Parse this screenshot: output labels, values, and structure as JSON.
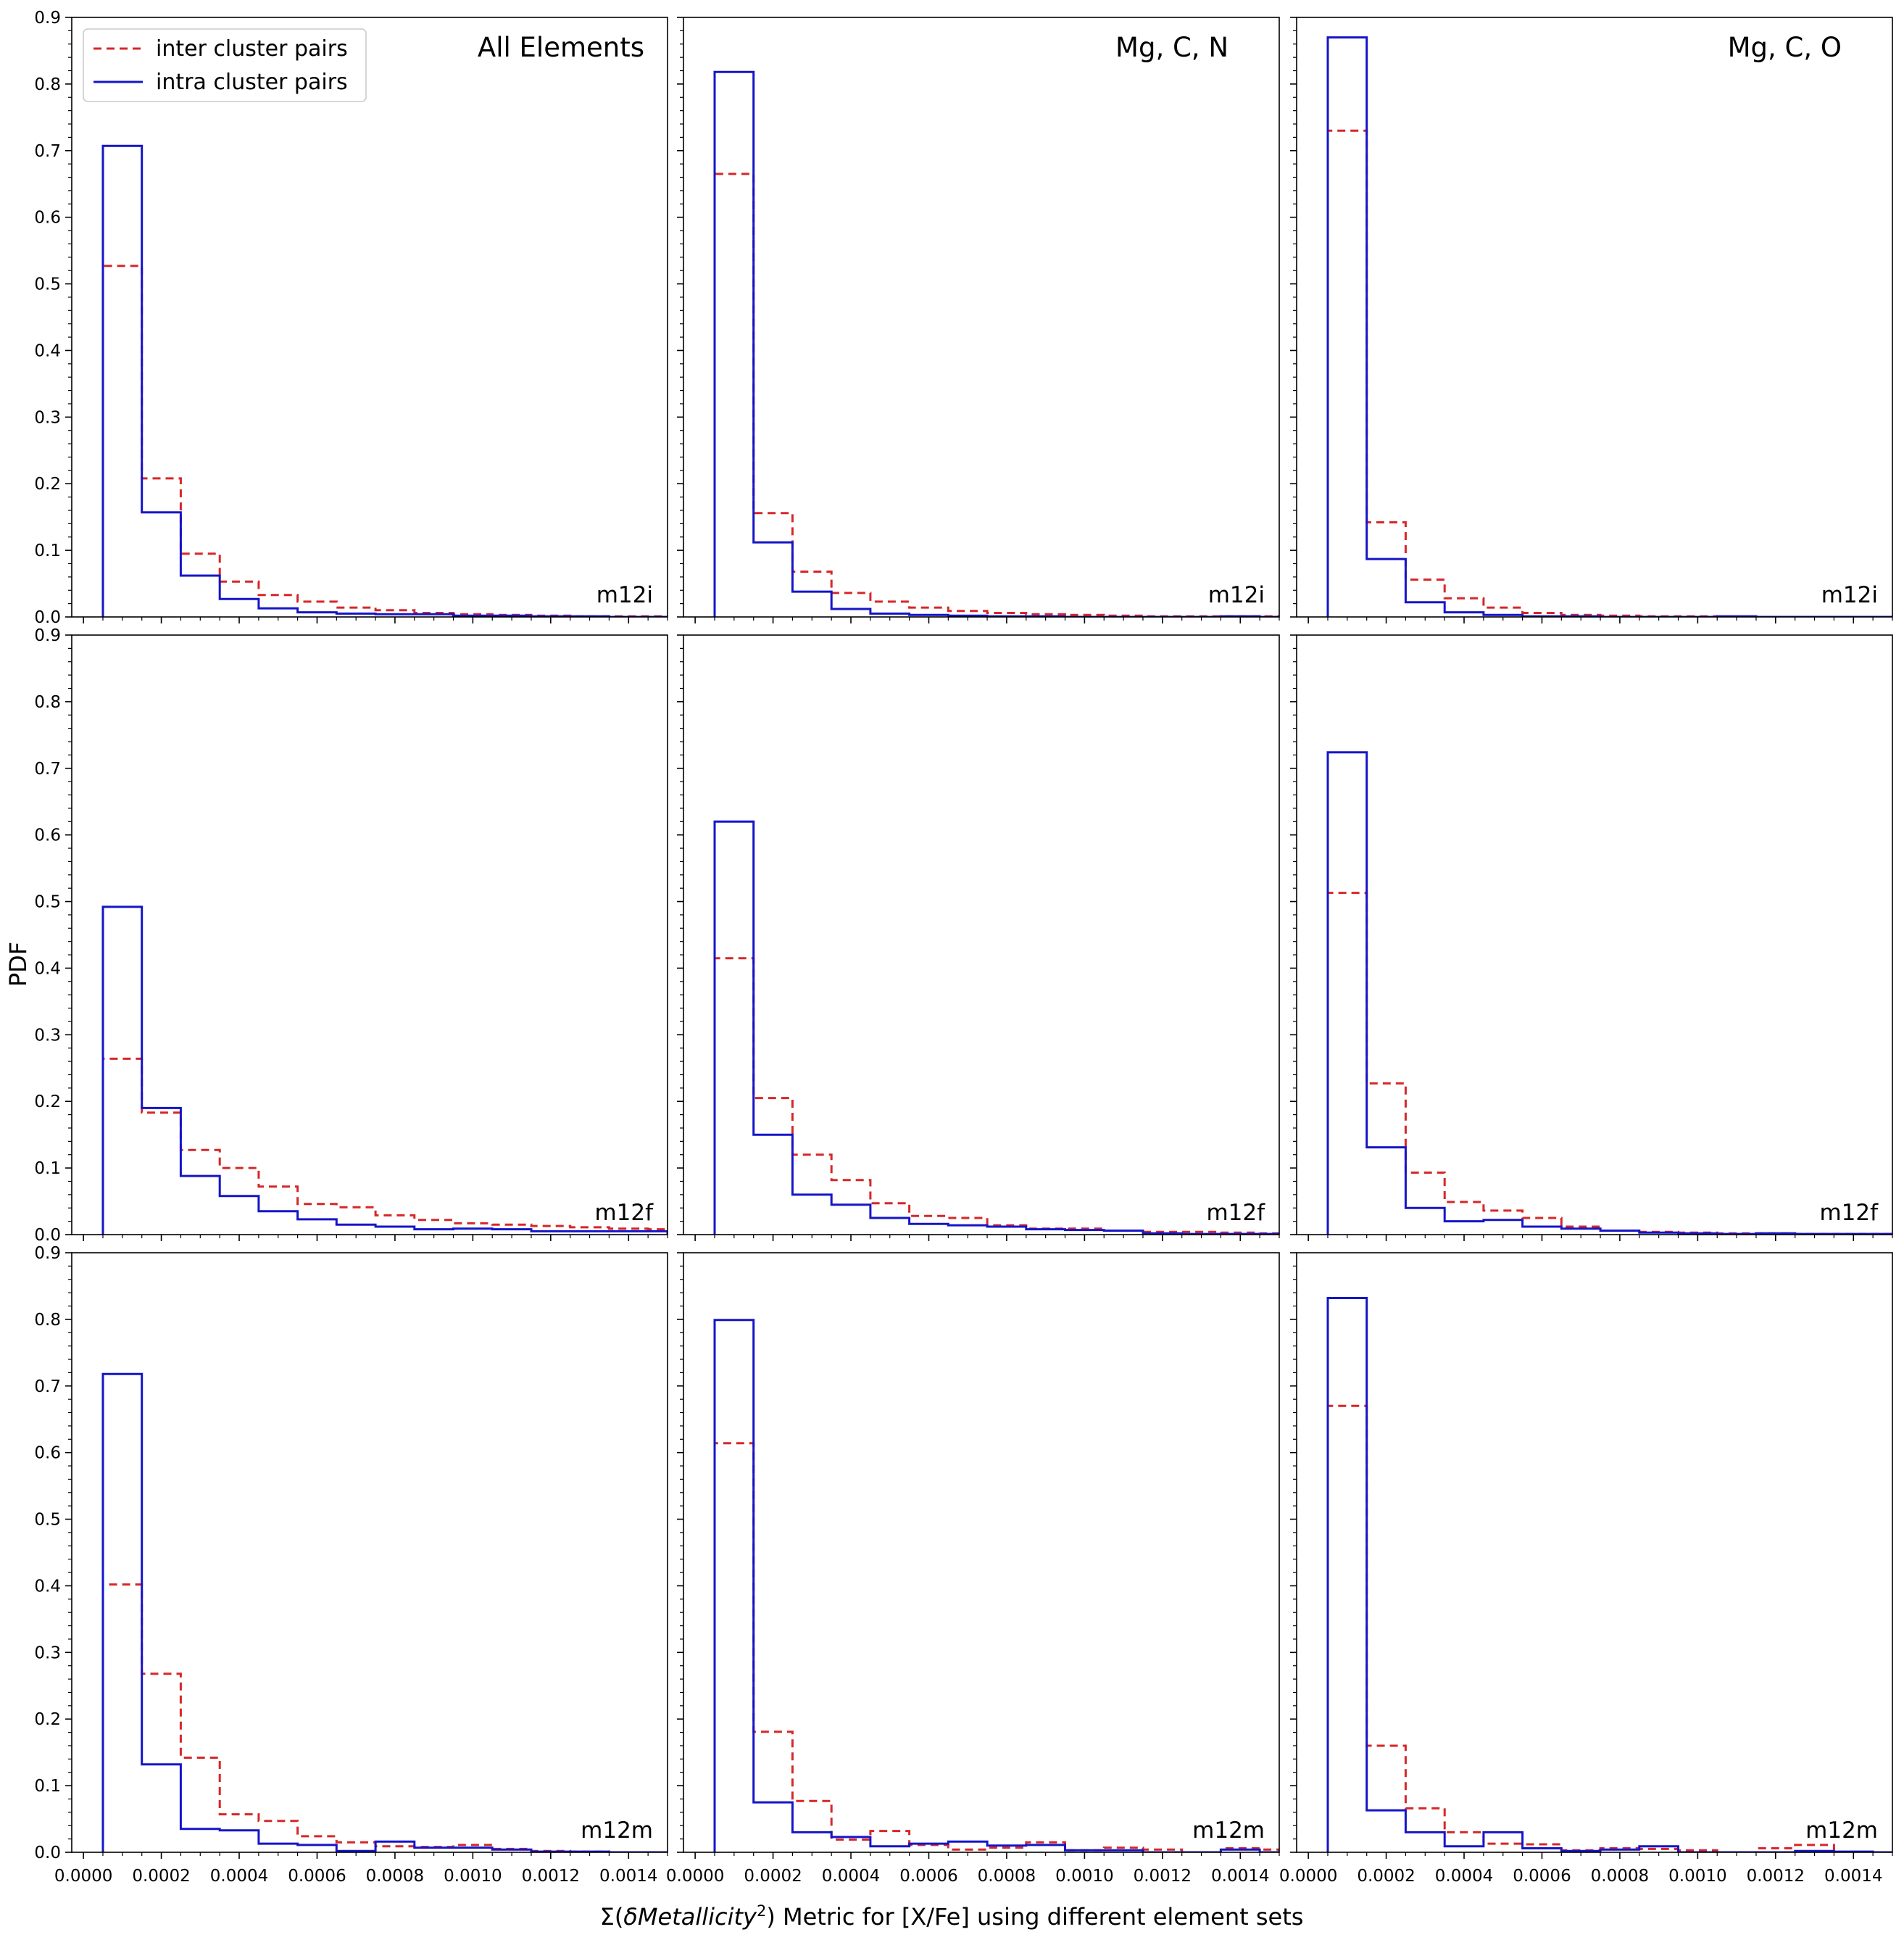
{
  "figure": {
    "ylabel": "PDF",
    "xlabel_prefix": "Σ(",
    "xlabel_italic": "δMetallicity",
    "xlabel_sup": "2",
    "xlabel_suffix": ") Metric for [X/Fe] using different element sets",
    "colors": {
      "inter": "#d62728",
      "intra": "#1515c8",
      "axis": "#000000"
    }
  },
  "legend": {
    "placement": "top-left of first panel",
    "entries": [
      {
        "label": "inter cluster pairs",
        "style": "dashed",
        "color": "#d62728"
      },
      {
        "label": "intra cluster pairs",
        "style": "solid",
        "color": "#1515c8"
      }
    ]
  },
  "chart_data": {
    "type": "histogram-grid",
    "rows": 3,
    "cols": 3,
    "xlim": [
      -3e-05,
      0.0015
    ],
    "ylim": [
      0,
      0.9
    ],
    "bin_edges": [
      5e-05,
      0.00015,
      0.00025,
      0.00035,
      0.00045,
      0.00055,
      0.00065,
      0.00075,
      0.00085,
      0.00095,
      0.00105,
      0.00115,
      0.00125,
      0.00135,
      0.00145,
      0.0015
    ],
    "xticks": [
      "0.0000",
      "0.0002",
      "0.0004",
      "0.0006",
      "0.0008",
      "0.0010",
      "0.0012",
      "0.0014"
    ],
    "xtick_values": [
      0,
      0.0002,
      0.0004,
      0.0006,
      0.0008,
      0.001,
      0.0012,
      0.0014
    ],
    "yticks": [
      "0.0",
      "0.1",
      "0.2",
      "0.3",
      "0.4",
      "0.5",
      "0.6",
      "0.7",
      "0.8",
      "0.9"
    ],
    "ytick_values": [
      0,
      0.1,
      0.2,
      0.3,
      0.4,
      0.5,
      0.6,
      0.7,
      0.8,
      0.9
    ],
    "column_titles": [
      "All Elements",
      "Mg, C, N",
      "Mg, C, O"
    ],
    "row_labels": [
      "m12i",
      "m12f",
      "m12m"
    ],
    "panels": [
      {
        "row": 0,
        "col": 0,
        "inter": [
          0.527,
          0.208,
          0.095,
          0.053,
          0.033,
          0.023,
          0.014,
          0.01,
          0.006,
          0.004,
          0.003,
          0.002,
          0.001,
          0.001,
          0.001
        ],
        "intra": [
          0.707,
          0.157,
          0.062,
          0.027,
          0.013,
          0.007,
          0.005,
          0.004,
          0.004,
          0.002,
          0.002,
          0.001,
          0.001,
          0.0,
          0.0
        ]
      },
      {
        "row": 0,
        "col": 1,
        "inter": [
          0.665,
          0.156,
          0.068,
          0.036,
          0.023,
          0.014,
          0.009,
          0.006,
          0.004,
          0.003,
          0.002,
          0.001,
          0.001,
          0.001,
          0.001
        ],
        "intra": [
          0.818,
          0.112,
          0.038,
          0.012,
          0.005,
          0.003,
          0.002,
          0.001,
          0.001,
          0.0,
          0.0,
          0.0,
          0.0,
          0.001,
          0.0
        ]
      },
      {
        "row": 0,
        "col": 2,
        "inter": [
          0.73,
          0.142,
          0.056,
          0.028,
          0.014,
          0.006,
          0.003,
          0.002,
          0.001,
          0.001,
          0.0,
          0.0,
          0.0,
          0.0,
          0.0
        ],
        "intra": [
          0.87,
          0.087,
          0.022,
          0.007,
          0.003,
          0.001,
          0.001,
          0.0,
          0.0,
          0.0,
          0.001,
          0.0,
          0.0,
          0.0,
          0.0
        ]
      },
      {
        "row": 1,
        "col": 0,
        "inter": [
          0.264,
          0.183,
          0.127,
          0.1,
          0.072,
          0.046,
          0.041,
          0.029,
          0.022,
          0.017,
          0.015,
          0.013,
          0.011,
          0.009,
          0.008
        ],
        "intra": [
          0.492,
          0.19,
          0.088,
          0.058,
          0.035,
          0.023,
          0.015,
          0.012,
          0.008,
          0.009,
          0.008,
          0.005,
          0.005,
          0.005,
          0.005
        ]
      },
      {
        "row": 1,
        "col": 1,
        "inter": [
          0.415,
          0.205,
          0.12,
          0.082,
          0.047,
          0.028,
          0.025,
          0.014,
          0.009,
          0.009,
          0.006,
          0.004,
          0.004,
          0.003,
          0.002
        ],
        "intra": [
          0.62,
          0.15,
          0.06,
          0.045,
          0.025,
          0.016,
          0.014,
          0.012,
          0.008,
          0.007,
          0.006,
          0.002,
          0.001,
          0.001,
          0.001
        ]
      },
      {
        "row": 1,
        "col": 2,
        "inter": [
          0.513,
          0.227,
          0.093,
          0.049,
          0.036,
          0.025,
          0.012,
          0.006,
          0.004,
          0.003,
          0.002,
          0.002,
          0.001,
          0.001,
          0.001
        ],
        "intra": [
          0.724,
          0.131,
          0.04,
          0.02,
          0.022,
          0.012,
          0.009,
          0.006,
          0.003,
          0.002,
          0.001,
          0.002,
          0.001,
          0.001,
          0.001
        ]
      },
      {
        "row": 2,
        "col": 0,
        "inter": [
          0.402,
          0.268,
          0.142,
          0.057,
          0.047,
          0.024,
          0.015,
          0.009,
          0.008,
          0.011,
          0.005,
          0.002,
          0.001,
          0.0,
          0.0
        ],
        "intra": [
          0.718,
          0.132,
          0.035,
          0.033,
          0.013,
          0.011,
          0.002,
          0.016,
          0.007,
          0.007,
          0.004,
          0.001,
          0.001,
          0.0,
          0.0
        ]
      },
      {
        "row": 2,
        "col": 1,
        "inter": [
          0.614,
          0.181,
          0.077,
          0.019,
          0.032,
          0.011,
          0.004,
          0.007,
          0.015,
          0.003,
          0.007,
          0.004,
          0.0,
          0.006,
          0.004
        ],
        "intra": [
          0.799,
          0.075,
          0.03,
          0.023,
          0.009,
          0.013,
          0.016,
          0.01,
          0.011,
          0.003,
          0.003,
          0.0,
          0.0,
          0.004,
          0.0
        ]
      },
      {
        "row": 2,
        "col": 2,
        "inter": [
          0.67,
          0.16,
          0.066,
          0.03,
          0.013,
          0.012,
          0.003,
          0.006,
          0.005,
          0.003,
          0.0,
          0.006,
          0.011,
          0.0,
          0.0
        ],
        "intra": [
          0.832,
          0.063,
          0.03,
          0.009,
          0.03,
          0.006,
          0.002,
          0.004,
          0.009,
          0.0,
          0.0,
          0.0,
          0.002,
          0.001,
          0.0
        ]
      }
    ]
  }
}
